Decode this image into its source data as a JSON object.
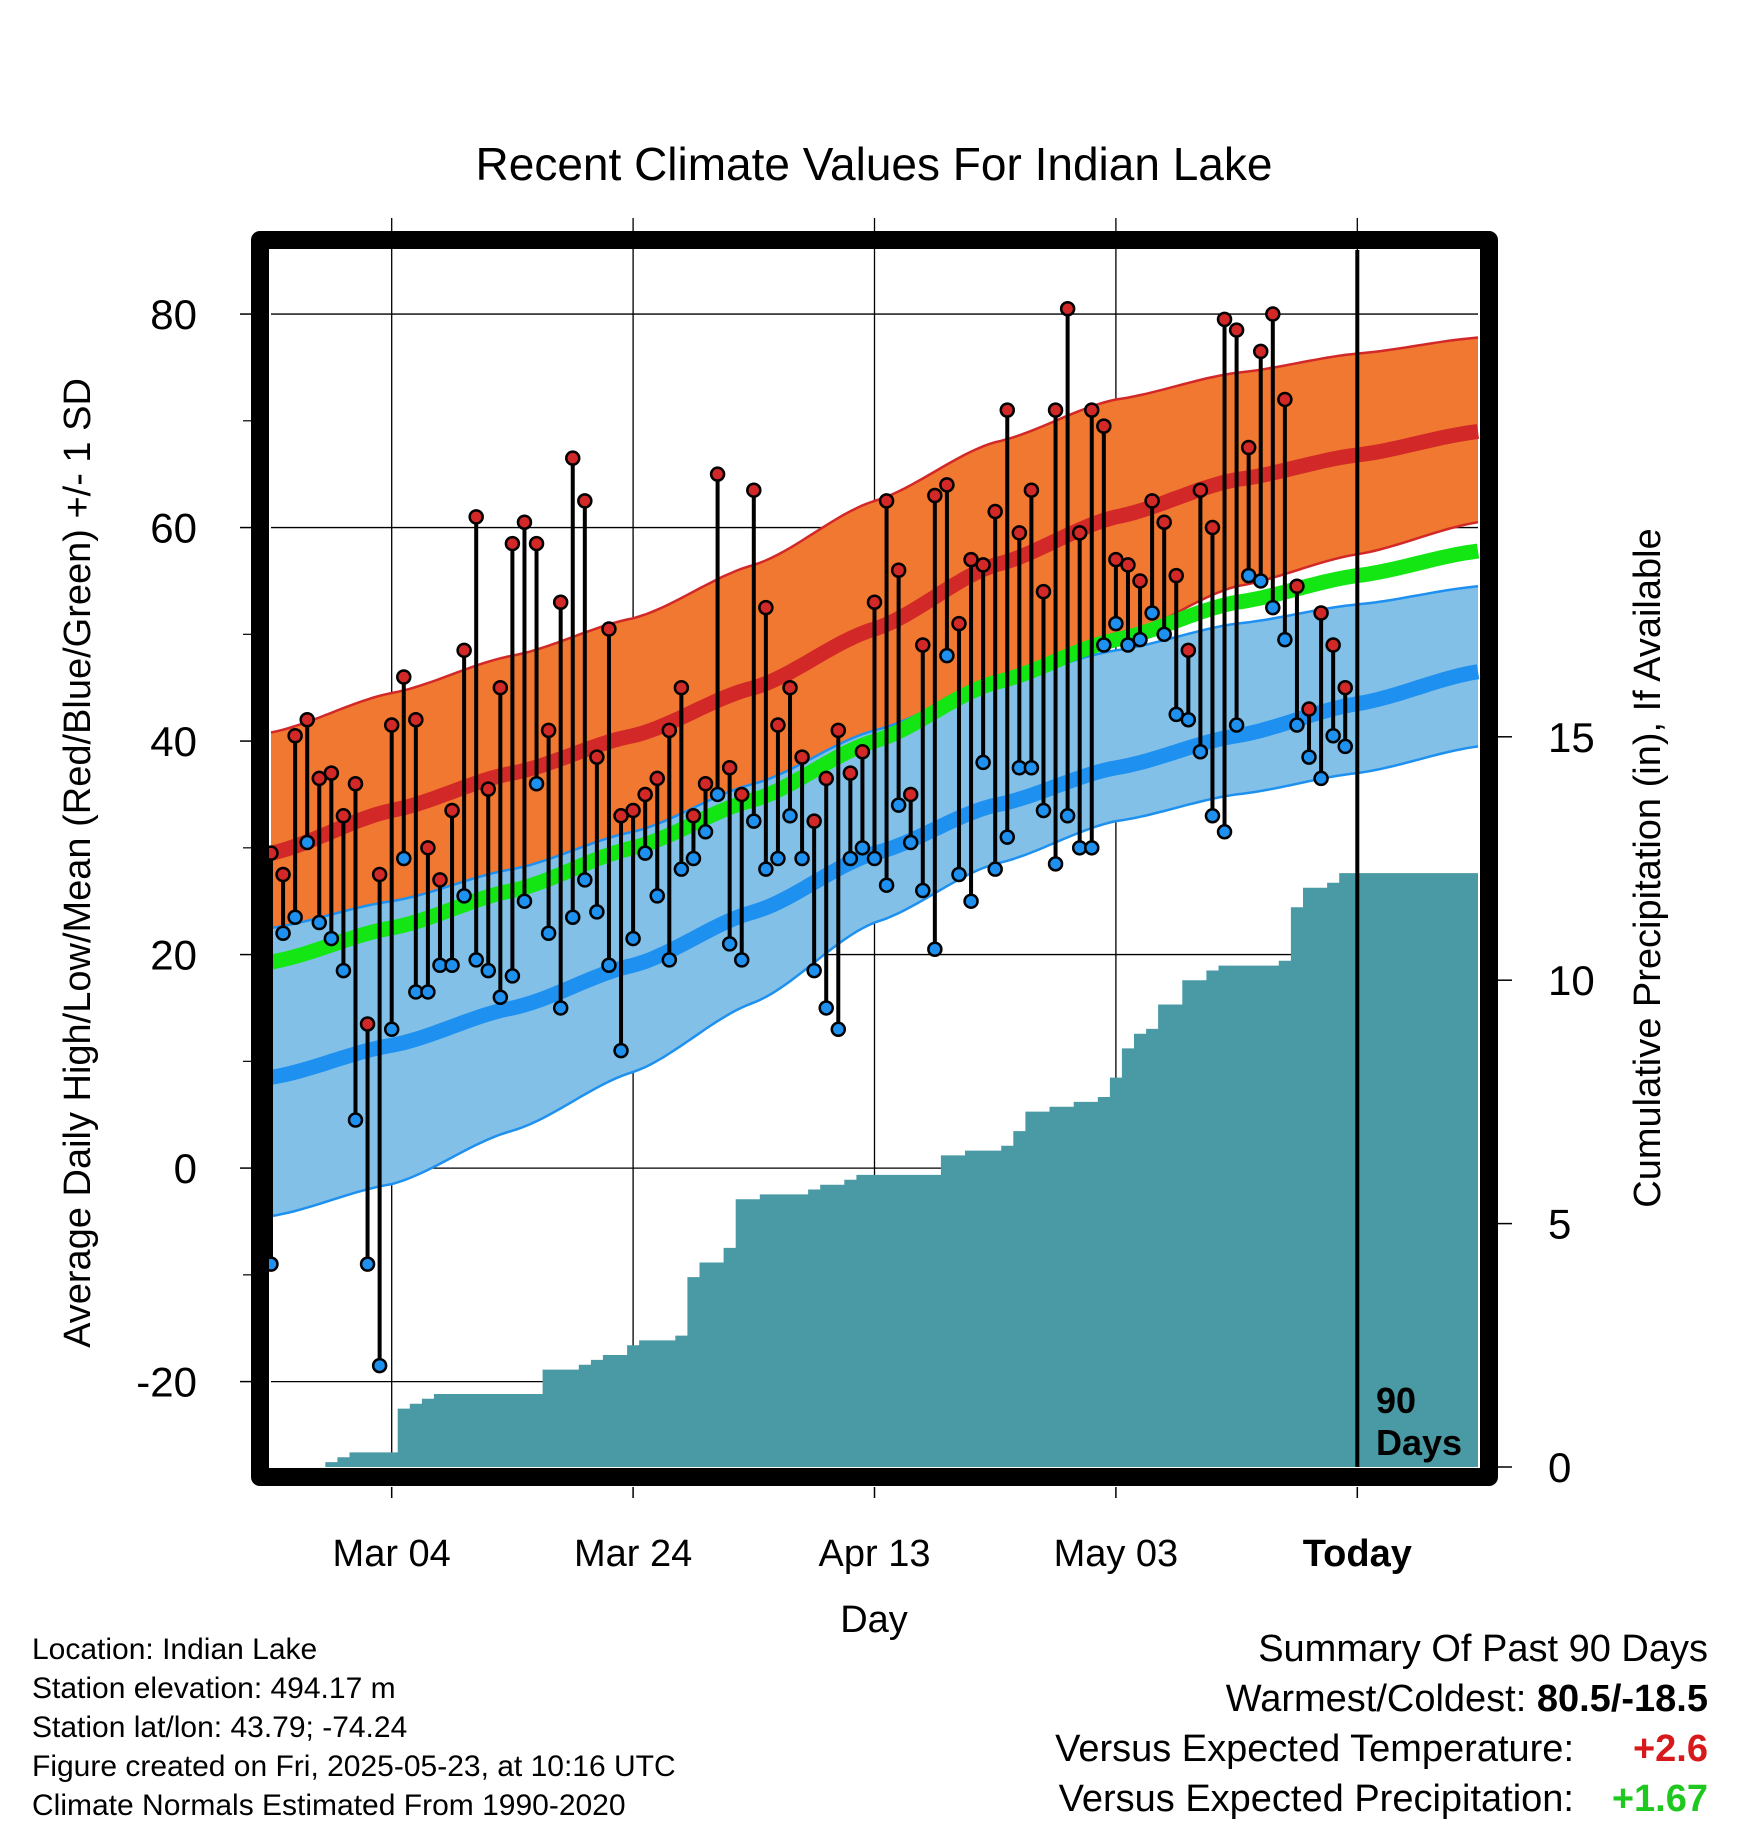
{
  "chart_data": {
    "type": "line",
    "title": "Recent Climate Values For Indian Lake",
    "xlabel": "Day",
    "ylabel": "Average Daily High/Low/Mean (Red/Blue/Green) +/- 1 SD",
    "y2label": "Cumulative Precipitation (in), If Available",
    "ylim": [
      -28,
      86
    ],
    "y2lim": [
      0,
      25
    ],
    "yticks": [
      -20,
      0,
      20,
      40,
      60,
      80
    ],
    "yminor_ticks": [
      -10,
      10,
      30,
      50,
      70
    ],
    "y2ticks": [
      0,
      5,
      10,
      15
    ],
    "x_day_range": [
      1,
      101
    ],
    "xticks": [
      {
        "day": 11,
        "label": "Mar 04"
      },
      {
        "day": 31,
        "label": "Mar 24"
      },
      {
        "day": 51,
        "label": "Apr 13"
      },
      {
        "day": 71,
        "label": "May 03"
      },
      {
        "day": 91,
        "label": "Today"
      }
    ],
    "grid": true,
    "today_day": 91,
    "today_label_line1": "90",
    "today_label_line2": "Days",
    "colors": {
      "high_band": "#f07830",
      "high_line": "#d22828",
      "low_band": "#82c0e8",
      "low_line": "#1e90f0",
      "mean_line": "#14e614",
      "precip": "#4a9aa6",
      "high_dot": "#d22828",
      "low_dot": "#1e90f0"
    },
    "normals": {
      "day": [
        1,
        11,
        21,
        31,
        41,
        51,
        61,
        71,
        81,
        91,
        101
      ],
      "high_mean": [
        29.5,
        33.5,
        37.0,
        40.5,
        45.0,
        50.5,
        56.5,
        61.0,
        64.5,
        66.8,
        69.0
      ],
      "high_upper": [
        40.8,
        44.5,
        48.0,
        51.5,
        56.5,
        62.5,
        68.0,
        72.0,
        74.5,
        76.3,
        77.8
      ],
      "high_lower": [
        21.0,
        23.5,
        26.5,
        29.5,
        33.5,
        38.5,
        44.0,
        49.5,
        54.5,
        57.5,
        60.5
      ],
      "low_mean": [
        8.5,
        11.5,
        15.0,
        19.0,
        24.0,
        29.5,
        34.0,
        37.5,
        40.5,
        43.5,
        46.5
      ],
      "low_upper": [
        22.5,
        25.0,
        28.0,
        31.5,
        36.0,
        41.0,
        45.5,
        48.5,
        51.0,
        52.8,
        54.5
      ],
      "low_lower": [
        -4.5,
        -1.5,
        3.5,
        9.0,
        15.5,
        23.0,
        28.5,
        32.5,
        35.0,
        37.0,
        39.5
      ],
      "mean_line": [
        19.3,
        22.5,
        26.0,
        30.0,
        34.5,
        40.0,
        45.5,
        49.5,
        53.0,
        55.5,
        57.8
      ]
    },
    "series": [
      {
        "name": "High",
        "values": [
          29.5,
          27.5,
          40.5,
          42.0,
          36.5,
          37.0,
          33.0,
          36.0,
          13.5,
          27.5,
          41.5,
          46.0,
          42.0,
          30.0,
          27.0,
          33.5,
          48.5,
          61.0,
          35.5,
          45.0,
          58.5,
          60.5,
          58.5,
          41.0,
          53.0,
          66.5,
          62.5,
          38.5,
          50.5,
          33.0,
          33.5,
          35.0,
          36.5,
          41.0,
          45.0,
          33.0,
          36.0,
          65.0,
          37.5,
          35.0,
          63.5,
          52.5,
          41.5,
          45.0,
          38.5,
          32.5,
          36.5,
          41.0,
          37.0,
          39.0,
          53.0,
          62.5,
          56.0,
          35.0,
          49.0,
          63.0,
          64.0,
          51.0,
          57.0,
          56.5,
          61.5,
          71.0,
          59.5,
          63.5,
          54.0,
          71.0,
          80.5,
          59.5,
          71.0,
          69.5,
          57.0,
          56.5,
          55.0,
          62.5,
          60.5,
          55.5,
          48.5,
          63.5,
          60.0,
          79.5,
          78.5,
          67.5,
          76.5,
          80.0,
          72.0,
          54.5,
          43.0,
          52.0,
          49.0,
          45.0
        ]
      },
      {
        "name": "Low",
        "values": [
          -9.0,
          22.0,
          23.5,
          30.5,
          23.0,
          21.5,
          18.5,
          4.5,
          -9.0,
          -18.5,
          13.0,
          29.0,
          16.5,
          16.5,
          19.0,
          19.0,
          25.5,
          19.5,
          18.5,
          16.0,
          18.0,
          25.0,
          36.0,
          22.0,
          15.0,
          23.5,
          27.0,
          24.0,
          19.0,
          11.0,
          21.5,
          29.5,
          25.5,
          19.5,
          28.0,
          29.0,
          31.5,
          35.0,
          21.0,
          19.5,
          32.5,
          28.0,
          29.0,
          33.0,
          29.0,
          18.5,
          15.0,
          13.0,
          29.0,
          30.0,
          29.0,
          26.5,
          34.0,
          30.5,
          26.0,
          20.5,
          48.0,
          27.5,
          25.0,
          38.0,
          28.0,
          31.0,
          37.5,
          37.5,
          33.5,
          28.5,
          33.0,
          30.0,
          30.0,
          49.0,
          51.0,
          49.0,
          49.5,
          52.0,
          50.0,
          42.5,
          42.0,
          39.0,
          33.0,
          31.5,
          41.5,
          55.5,
          55.0,
          52.5,
          49.5,
          41.5,
          38.5,
          36.5,
          40.5,
          39.5
        ]
      },
      {
        "name": "Cumulative Precipitation",
        "y_axis": "right",
        "values": [
          0.0,
          0.0,
          0.0,
          0.0,
          0.0,
          0.1,
          0.2,
          0.3,
          0.3,
          0.3,
          0.3,
          1.2,
          1.3,
          1.4,
          1.5,
          1.5,
          1.5,
          1.5,
          1.5,
          1.5,
          1.5,
          1.5,
          1.5,
          2.0,
          2.0,
          2.0,
          2.1,
          2.2,
          2.3,
          2.3,
          2.5,
          2.6,
          2.6,
          2.6,
          2.7,
          3.9,
          4.2,
          4.2,
          4.5,
          5.5,
          5.5,
          5.6,
          5.6,
          5.6,
          5.6,
          5.7,
          5.8,
          5.8,
          5.9,
          6.0,
          6.0,
          6.0,
          6.0,
          6.0,
          6.0,
          6.0,
          6.4,
          6.4,
          6.5,
          6.5,
          6.5,
          6.6,
          6.9,
          7.3,
          7.3,
          7.4,
          7.4,
          7.5,
          7.5,
          7.6,
          8.0,
          8.6,
          8.9,
          9.0,
          9.5,
          9.5,
          10.0,
          10.0,
          10.2,
          10.3,
          10.3,
          10.3,
          10.3,
          10.3,
          10.4,
          11.5,
          11.9,
          11.9,
          12.0,
          12.2,
          12.2,
          12.2,
          12.2,
          12.2,
          12.2,
          12.2,
          12.2,
          12.2,
          12.2,
          12.2,
          12.2
        ]
      }
    ]
  },
  "info": {
    "location": "Location: Indian Lake",
    "elevation": "Station elevation: 494.17 m",
    "latlon": "Station lat/lon: 43.79; -74.24",
    "created": "Figure created on Fri, 2025-05-23, at 10:16 UTC",
    "normals_period": "Climate Normals Estimated From 1990-2020"
  },
  "summary": {
    "heading": "Summary Of Past 90 Days",
    "warmest_coldest_label": "Warmest/Coldest:",
    "warmest_coldest_value": "80.5/-18.5",
    "temp_label": "Versus Expected Temperature:",
    "temp_value": "+2.6",
    "precip_label": "Versus Expected Precipitation:",
    "precip_value": "+1.67"
  }
}
